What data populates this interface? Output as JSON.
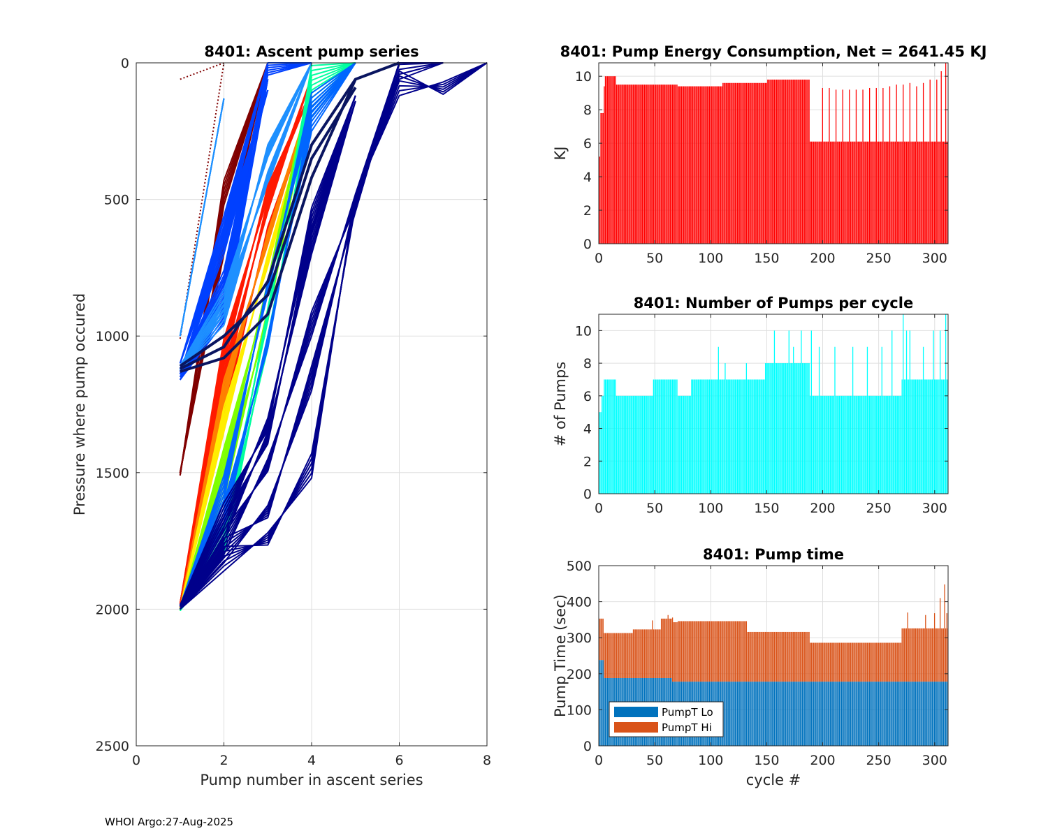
{
  "footer": "WHOI Argo:27-Aug-2025",
  "colors": {
    "energy": "#ff0000",
    "pumps": "#00ffff",
    "lo": "#0072bd",
    "hi": "#d95319",
    "grid": "#dfdfdf",
    "axis": "#262626"
  },
  "chart_data": [
    {
      "id": "ascent",
      "type": "line",
      "title": "8401: Ascent pump series",
      "xlabel": "Pump number in ascent series",
      "ylabel": "Pressure where pump occured",
      "xlim": [
        0,
        8
      ],
      "ylim": [
        0,
        2500
      ],
      "y_reversed": true,
      "xticks": [
        0,
        2,
        4,
        6,
        8
      ],
      "yticks": [
        0,
        500,
        1000,
        1500,
        2000,
        2500
      ],
      "grid": true,
      "series_groups": [
        {
          "name": "dark red",
          "color": "#800000",
          "profiles": [
            {
              "x": [
                1,
                2,
                3
              ],
              "y": [
                1510,
                520,
                0
              ]
            },
            {
              "x": [
                1,
                2,
                3
              ],
              "y": [
                1500,
                700,
                0
              ]
            }
          ]
        },
        {
          "name": "dotted start",
          "color": "#800000",
          "dotted": true,
          "profiles": [
            {
              "x": [
                1,
                2
              ],
              "y": [
                60,
                0
              ]
            },
            {
              "x": [
                1,
                2
              ],
              "y": [
                1010,
                0
              ]
            }
          ]
        },
        {
          "name": "blue shallow",
          "color": "#0040ff",
          "profiles": [
            {
              "x": [
                1,
                2,
                3
              ],
              "y": [
                1150,
                900,
                0
              ]
            },
            {
              "x": [
                1,
                2,
                3
              ],
              "y": [
                1160,
                950,
                60
              ]
            },
            {
              "x": [
                1,
                2,
                3
              ],
              "y": [
                1120,
                850,
                10
              ]
            },
            {
              "x": [
                1,
                2,
                3,
                4
              ],
              "y": [
                1130,
                880,
                0,
                0
              ]
            },
            {
              "x": [
                1,
                2,
                3
              ],
              "y": [
                1140,
                700,
                100
              ]
            },
            {
              "x": [
                1,
                2,
                3
              ],
              "y": [
                1100,
                650,
                0
              ]
            }
          ]
        },
        {
          "name": "dodger blue",
          "color": "#1e90ff",
          "profiles": [
            {
              "x": [
                1,
                2,
                3,
                4
              ],
              "y": [
                1110,
                920,
                300,
                0
              ]
            },
            {
              "x": [
                1,
                2,
                3,
                4
              ],
              "y": [
                1125,
                960,
                400,
                0
              ]
            },
            {
              "x": [
                1,
                2
              ],
              "y": [
                1000,
                130
              ]
            }
          ]
        },
        {
          "name": "red",
          "color": "#ff1a00",
          "profiles": [
            {
              "x": [
                1,
                2,
                3,
                4
              ],
              "y": [
                1990,
                1200,
                500,
                50
              ]
            },
            {
              "x": [
                1,
                2,
                3,
                4
              ],
              "y": [
                1980,
                1100,
                450,
                100
              ]
            },
            {
              "x": [
                1,
                2,
                3,
                4
              ],
              "y": [
                2000,
                1300,
                600,
                150
              ]
            }
          ]
        },
        {
          "name": "orange",
          "color": "#ff8000",
          "profiles": [
            {
              "x": [
                1,
                2,
                3,
                4
              ],
              "y": [
                1995,
                1250,
                620,
                120
              ]
            }
          ]
        },
        {
          "name": "yellow",
          "color": "#ffee00",
          "profiles": [
            {
              "x": [
                1,
                2,
                3,
                4
              ],
              "y": [
                2000,
                1350,
                700,
                150
              ]
            }
          ]
        },
        {
          "name": "lime",
          "color": "#7fff00",
          "profiles": [
            {
              "x": [
                1,
                2,
                3,
                4
              ],
              "y": [
                2000,
                1600,
                900,
                100
              ]
            },
            {
              "x": [
                1,
                2,
                3,
                4
              ],
              "y": [
                2005,
                1500,
                800,
                50
              ]
            }
          ]
        },
        {
          "name": "aqua green",
          "color": "#00ff9f",
          "profiles": [
            {
              "x": [
                1,
                2,
                3,
                4,
                5
              ],
              "y": [
                2005,
                1800,
                1000,
                200,
                0
              ]
            },
            {
              "x": [
                1,
                2,
                3,
                4,
                5
              ],
              "y": [
                2000,
                1780,
                900,
                100,
                0
              ]
            }
          ]
        },
        {
          "name": "mid blue",
          "color": "#0066ff",
          "profiles": [
            {
              "x": [
                1,
                2,
                3,
                4,
                5
              ],
              "y": [
                1990,
                1600,
                800,
                200,
                0
              ]
            },
            {
              "x": [
                1,
                2,
                3,
                4,
                5
              ],
              "y": [
                2000,
                1700,
                1000,
                250,
                0
              ]
            }
          ]
        },
        {
          "name": "navy",
          "color": "#00008b",
          "profiles": [
            {
              "x": [
                1,
                2,
                3,
                4,
                5,
                6
              ],
              "y": [
                2000,
                1860,
                1720,
                1520,
                480,
                0
              ]
            },
            {
              "x": [
                1,
                2,
                3,
                4,
                5,
                6,
                7
              ],
              "y": [
                2000,
                1830,
                1620,
                1200,
                500,
                60,
                0
              ]
            },
            {
              "x": [
                1,
                2,
                3,
                4,
                5,
                6,
                7,
                8
              ],
              "y": [
                2000,
                1800,
                1450,
                1000,
                480,
                120,
                70,
                0
              ]
            },
            {
              "x": [
                1,
                2,
                3,
                4,
                5
              ],
              "y": [
                1990,
                1750,
                1350,
                700,
                140
              ]
            },
            {
              "x": [
                1,
                2,
                3,
                4,
                5
              ],
              "y": [
                1985,
                1700,
                1300,
                620,
                120
              ]
            }
          ]
        },
        {
          "name": "thick navy",
          "color": "#0a1560",
          "thick": true,
          "profiles": [
            {
              "x": [
                1,
                2,
                3,
                4,
                5,
                6
              ],
              "y": [
                1130,
                1080,
                920,
                420,
                60,
                0
              ]
            },
            {
              "x": [
                1,
                2,
                3,
                4,
                5
              ],
              "y": [
                1120,
                1040,
                800,
                300,
                60
              ]
            },
            {
              "x": [
                1,
                2,
                3,
                4,
                5
              ],
              "y": [
                1110,
                1000,
                850,
                350,
                90
              ]
            }
          ]
        }
      ]
    },
    {
      "id": "energy",
      "type": "bar",
      "title": "8401: Pump Energy Consumption,  Net = 2641.45 KJ",
      "xlabel": "",
      "ylabel": "KJ",
      "xlim": [
        0,
        312
      ],
      "ylim": [
        0,
        10.8
      ],
      "xticks": [
        0,
        50,
        100,
        150,
        200,
        250,
        300
      ],
      "yticks": [
        0,
        2,
        4,
        6,
        8,
        10
      ],
      "grid": true,
      "net_kj": 2641.45,
      "segments": [
        {
          "from": 1,
          "to": 1,
          "value": 5.2
        },
        {
          "from": 2,
          "to": 4,
          "value": 7.8
        },
        {
          "from": 5,
          "to": 5,
          "value": 9.4
        },
        {
          "from": 6,
          "to": 15,
          "value": 10.0
        },
        {
          "from": 16,
          "to": 70,
          "value": 9.5
        },
        {
          "from": 71,
          "to": 110,
          "value": 9.4
        },
        {
          "from": 111,
          "to": 150,
          "value": 9.6
        },
        {
          "from": 151,
          "to": 188,
          "value": 9.8
        },
        {
          "from": 189,
          "to": 312,
          "value": 6.1
        }
      ],
      "spikes": [
        {
          "at": 200,
          "value": 9.3
        },
        {
          "at": 206,
          "value": 9.3
        },
        {
          "at": 212,
          "value": 9.2
        },
        {
          "at": 218,
          "value": 9.2
        },
        {
          "at": 224,
          "value": 9.2
        },
        {
          "at": 230,
          "value": 9.2
        },
        {
          "at": 236,
          "value": 9.2
        },
        {
          "at": 242,
          "value": 9.3
        },
        {
          "at": 248,
          "value": 9.3
        },
        {
          "at": 254,
          "value": 9.3
        },
        {
          "at": 260,
          "value": 9.4
        },
        {
          "at": 266,
          "value": 9.5
        },
        {
          "at": 272,
          "value": 9.5
        },
        {
          "at": 278,
          "value": 9.6
        },
        {
          "at": 284,
          "value": 9.4
        },
        {
          "at": 290,
          "value": 9.6
        },
        {
          "at": 296,
          "value": 9.8
        },
        {
          "at": 302,
          "value": 9.8
        },
        {
          "at": 306,
          "value": 10.3
        },
        {
          "at": 310,
          "value": 10.8
        }
      ]
    },
    {
      "id": "pumps",
      "type": "bar",
      "title": "8401: Number of Pumps per cycle",
      "xlabel": "",
      "ylabel": "# of Pumps",
      "xlim": [
        0,
        312
      ],
      "ylim": [
        0,
        11
      ],
      "xticks": [
        0,
        50,
        100,
        150,
        200,
        250,
        300
      ],
      "yticks": [
        0,
        2,
        4,
        6,
        8,
        10
      ],
      "grid": true,
      "segments": [
        {
          "from": 1,
          "to": 2,
          "value": 5
        },
        {
          "from": 3,
          "to": 4,
          "value": 6
        },
        {
          "from": 5,
          "to": 15,
          "value": 7
        },
        {
          "from": 16,
          "to": 48,
          "value": 6
        },
        {
          "from": 49,
          "to": 70,
          "value": 7
        },
        {
          "from": 71,
          "to": 82,
          "value": 6
        },
        {
          "from": 83,
          "to": 115,
          "value": 7
        },
        {
          "from": 116,
          "to": 148,
          "value": 7
        },
        {
          "from": 149,
          "to": 188,
          "value": 8
        },
        {
          "from": 189,
          "to": 270,
          "value": 6
        },
        {
          "from": 271,
          "to": 312,
          "value": 7
        }
      ],
      "spikes": [
        {
          "at": 107,
          "value": 9
        },
        {
          "at": 113,
          "value": 8
        },
        {
          "at": 132,
          "value": 8
        },
        {
          "at": 157,
          "value": 10
        },
        {
          "at": 170,
          "value": 10
        },
        {
          "at": 174,
          "value": 9
        },
        {
          "at": 181,
          "value": 10
        },
        {
          "at": 190,
          "value": 10
        },
        {
          "at": 197,
          "value": 9
        },
        {
          "at": 211,
          "value": 9
        },
        {
          "at": 227,
          "value": 9
        },
        {
          "at": 240,
          "value": 9
        },
        {
          "at": 253,
          "value": 9
        },
        {
          "at": 262,
          "value": 10
        },
        {
          "at": 272,
          "value": 11
        },
        {
          "at": 275,
          "value": 10
        },
        {
          "at": 278,
          "value": 10
        },
        {
          "at": 290,
          "value": 9
        },
        {
          "at": 299,
          "value": 10
        },
        {
          "at": 305,
          "value": 10
        },
        {
          "at": 310,
          "value": 11
        }
      ]
    },
    {
      "id": "pumptime",
      "type": "bar",
      "stacked": true,
      "title": "8401: Pump time",
      "xlabel": "cycle #",
      "ylabel": "Pump Time (sec)",
      "xlim": [
        0,
        312
      ],
      "ylim": [
        0,
        500
      ],
      "xticks": [
        0,
        50,
        100,
        150,
        200,
        250,
        300
      ],
      "yticks": [
        0,
        100,
        200,
        300,
        400,
        500
      ],
      "grid": true,
      "legend": {
        "position": "bottom-left",
        "entries": [
          "PumpT Lo",
          "PumpT Hi"
        ]
      },
      "series": [
        {
          "name": "PumpT Lo",
          "segments": [
            {
              "from": 1,
              "to": 4,
              "value": 238
            },
            {
              "from": 5,
              "to": 65,
              "value": 188
            },
            {
              "from": 66,
              "to": 312,
              "value": 178
            }
          ]
        },
        {
          "name": "PumpT Hi",
          "segments": [
            {
              "from": 1,
              "to": 4,
              "value": 115
            },
            {
              "from": 5,
              "to": 30,
              "value": 125
            },
            {
              "from": 31,
              "to": 55,
              "value": 135
            },
            {
              "from": 56,
              "to": 70,
              "value": 165
            },
            {
              "from": 71,
              "to": 132,
              "value": 168
            },
            {
              "from": 133,
              "to": 188,
              "value": 138
            },
            {
              "from": 189,
              "to": 270,
              "value": 108
            },
            {
              "from": 271,
              "to": 312,
              "value": 148
            }
          ]
        }
      ],
      "hi_spikes": [
        {
          "at": 48,
          "value": 160
        },
        {
          "at": 62,
          "value": 175
        },
        {
          "at": 66,
          "value": 178
        },
        {
          "at": 276,
          "value": 192
        },
        {
          "at": 292,
          "value": 185
        },
        {
          "at": 300,
          "value": 190
        },
        {
          "at": 305,
          "value": 232
        },
        {
          "at": 309,
          "value": 270
        },
        {
          "at": 311,
          "value": 190
        }
      ]
    }
  ]
}
